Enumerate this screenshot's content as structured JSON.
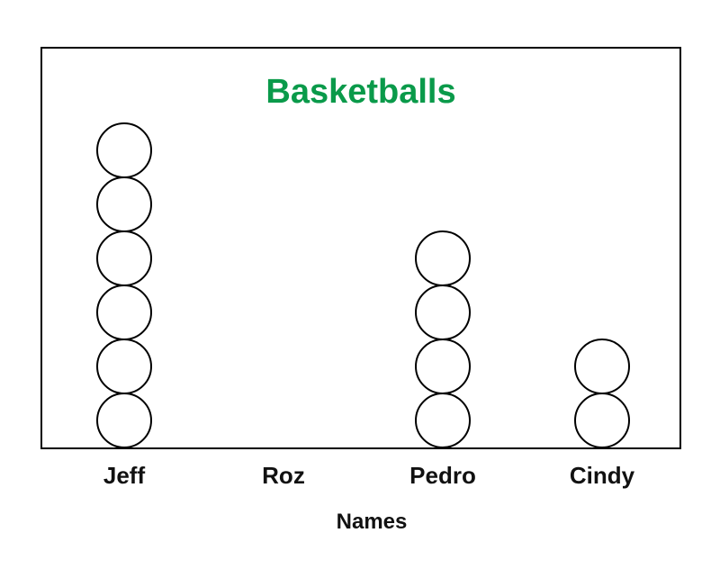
{
  "chart_data": {
    "type": "pictograph",
    "title": "Basketballs",
    "title_color": "#0a9a4a",
    "xlabel": "Names",
    "ylabel": "",
    "categories": [
      "Jeff",
      "Roz",
      "Pedro",
      "Cindy"
    ],
    "values": [
      6,
      0,
      4,
      2
    ],
    "symbol": "circle",
    "grid": false
  }
}
